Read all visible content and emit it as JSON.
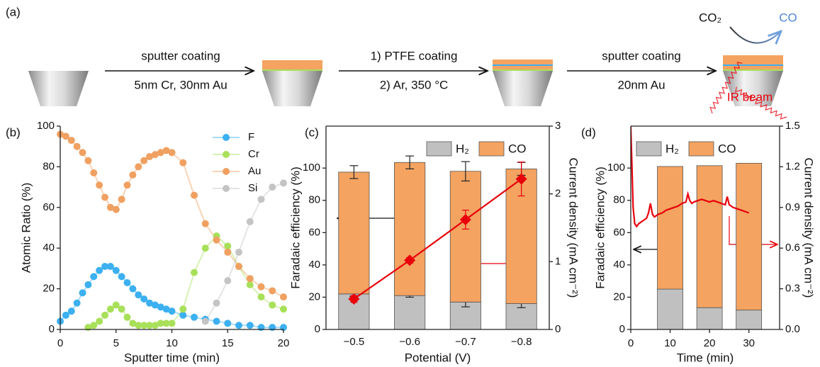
{
  "schematic": {
    "panel": "(a)",
    "steps": [
      {
        "top": "sputter coating",
        "bottom": "5nm Cr, 30nm Au"
      },
      {
        "top": "1) PTFE coating",
        "bottom": "2) Ar, 350 °C"
      },
      {
        "top": "sputter coating",
        "bottom": "20nm Au"
      }
    ],
    "reactant": "CO₂",
    "product": "CO",
    "beam": "IR beam"
  },
  "chart_data": [
    {
      "type": "line",
      "panel": "(b)",
      "x_label": "Sputter time (min)",
      "y_label": "Atomic Ratio (%)",
      "xlim": [
        0,
        20
      ],
      "xticks": [
        0,
        5,
        10,
        15,
        20
      ],
      "ylim": [
        0,
        100
      ],
      "yticks": [
        0,
        20,
        40,
        60,
        80,
        100
      ],
      "legend": "top-right",
      "series": [
        {
          "name": "F",
          "color": "#3cb0f0",
          "x": [
            0,
            0.5,
            1,
            1.5,
            2,
            2.5,
            3,
            3.5,
            4,
            4.5,
            5,
            5.5,
            6,
            6.5,
            7,
            7.5,
            8,
            8.5,
            9,
            9.5,
            10,
            11,
            12,
            13,
            14,
            15,
            16,
            17,
            18,
            19,
            20
          ],
          "values": [
            4,
            7,
            9,
            13,
            18,
            22,
            26,
            29,
            31,
            31,
            29,
            26,
            23,
            20,
            17,
            15,
            13,
            12,
            11,
            10,
            9,
            7,
            6,
            5,
            4,
            3,
            2,
            2,
            1,
            1,
            1
          ]
        },
        {
          "name": "Cr",
          "color": "#a8e05a",
          "x": [
            2.5,
            3,
            3.5,
            4,
            4.5,
            5,
            5.5,
            6,
            6.5,
            7,
            7.5,
            8,
            8.5,
            9,
            9.5,
            10,
            11,
            12,
            13,
            14,
            15,
            16,
            17,
            18,
            19,
            20
          ],
          "values": [
            1,
            2,
            4,
            7,
            10,
            12,
            10,
            6,
            3,
            2,
            2,
            2,
            2,
            3,
            3,
            3,
            10,
            28,
            40,
            46,
            41,
            31,
            22,
            16,
            12,
            10
          ]
        },
        {
          "name": "Au",
          "color": "#f0a060",
          "x": [
            0,
            0.5,
            1,
            1.5,
            2,
            2.5,
            3,
            3.5,
            4,
            4.5,
            5,
            5.5,
            6,
            6.5,
            7,
            7.5,
            8,
            8.5,
            9,
            9.5,
            10,
            11,
            12,
            13,
            14,
            15,
            16,
            17,
            18,
            19,
            20
          ],
          "values": [
            96,
            95,
            93,
            90,
            87,
            83,
            77,
            71,
            65,
            60,
            59,
            64,
            71,
            76,
            80,
            83,
            85,
            86,
            87,
            88,
            87,
            82,
            66,
            52,
            44,
            38,
            31,
            25,
            21,
            19,
            16
          ]
        },
        {
          "name": "Si",
          "color": "#c4c4c4",
          "x": [
            13,
            14,
            15,
            16,
            17,
            18,
            19,
            20
          ],
          "values": [
            4,
            13,
            24,
            38,
            53,
            64,
            70,
            72
          ]
        }
      ]
    },
    {
      "type": "bar",
      "panel": "(c)",
      "x_label": "Potential (V)",
      "y_label": "Faradaic efficiency (%)",
      "y2_label": "Current density (mA cm⁻²)",
      "categories": [
        "−0.5",
        "−0.6",
        "−0.7",
        "−0.8"
      ],
      "ylim": [
        0,
        126
      ],
      "yticks": [
        0,
        20,
        40,
        60,
        80,
        100
      ],
      "y2lim": [
        0,
        3
      ],
      "y2ticks": [
        0,
        1,
        2,
        3
      ],
      "legend": "top-right",
      "series": [
        {
          "name": "H₂",
          "color": "#c0c0c0",
          "values": [
            22,
            21,
            17,
            16
          ],
          "errors": [
            1.5,
            1,
            3,
            2.5
          ]
        },
        {
          "name": "CO",
          "color": "#f4a361",
          "values": [
            75.5,
            82.5,
            81,
            83.5
          ],
          "errors": [
            4,
            4,
            6,
            4
          ]
        },
        {
          "color": "#e8000b",
          "axis": "y2",
          "marker": "diamond",
          "values": [
            0.45,
            1.02,
            1.62,
            2.22
          ],
          "errors": [
            0.05,
            0.04,
            0.14,
            0.25
          ]
        }
      ]
    },
    {
      "type": "bar",
      "panel": "(d)",
      "x_label": "Time (min)",
      "y_label": "Faradaic efficiency (%)",
      "y2_label": "Current density (mA cm⁻²)",
      "x": [
        10,
        20,
        30
      ],
      "xlim": [
        0,
        37.8
      ],
      "xticks": [
        0,
        10,
        20,
        30
      ],
      "ylim": [
        0,
        126
      ],
      "yticks": [
        0,
        20,
        40,
        60,
        80,
        100
      ],
      "y2lim": [
        0,
        1.5
      ],
      "y2ticks": [
        {
          "value": 0,
          "label": "0.0"
        },
        0.3,
        0.6,
        0.9,
        1.2,
        1.5
      ],
      "legend": "top-left",
      "series": [
        {
          "name": "H₂",
          "color": "#c0c0c0",
          "values": [
            25,
            13.5,
            12
          ]
        },
        {
          "name": "CO",
          "color": "#f4a361",
          "values": [
            76,
            88,
            91
          ]
        },
        {
          "color": "#e8000b",
          "axis": "y2",
          "x": [
            0,
            0.3,
            0.6,
            1,
            1.5,
            2,
            3,
            4,
            4.5,
            5,
            5.5,
            6,
            7,
            8,
            9,
            10,
            11,
            12,
            13,
            14,
            14.5,
            15,
            15.5,
            16,
            17,
            18,
            19,
            20,
            21,
            22,
            23,
            24,
            24.5,
            25,
            25.5,
            26,
            27,
            28,
            29,
            30
          ],
          "values": [
            1.5,
            1.2,
            0.9,
            0.78,
            0.76,
            0.78,
            0.8,
            0.82,
            0.86,
            0.93,
            0.85,
            0.83,
            0.85,
            0.86,
            0.88,
            0.89,
            0.9,
            0.91,
            0.93,
            0.94,
            1.0,
            0.95,
            0.93,
            0.94,
            0.95,
            0.96,
            0.95,
            0.94,
            0.95,
            0.94,
            0.93,
            0.92,
            0.98,
            0.92,
            0.91,
            0.9,
            0.89,
            0.88,
            0.87,
            0.86
          ]
        }
      ]
    }
  ]
}
